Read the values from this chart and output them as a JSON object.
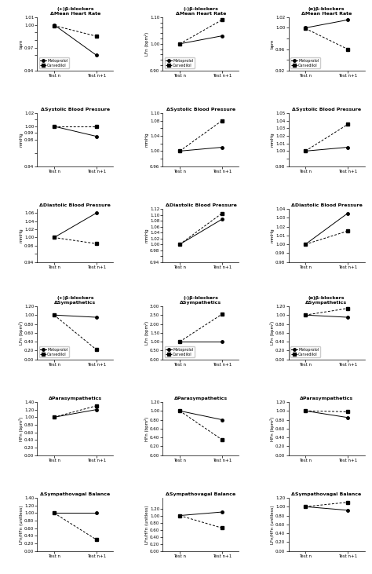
{
  "x_labels": [
    "Test n",
    "Test n+1"
  ],
  "legend_labels": [
    "Metoprolol",
    "Carvedilol"
  ],
  "plots": {
    "r1c1": {
      "title": "(+)β-blockers\nΔMean Heart Rate",
      "ylabel": "bpm",
      "ylim": [
        0.94,
        1.01
      ],
      "yticks": [
        0.94,
        0.96,
        0.97,
        0.98,
        0.99,
        1.0,
        1.01
      ],
      "ytick_labels": [
        "0.94",
        "",
        "0.97",
        "",
        "",
        "1.00",
        "1.01"
      ],
      "metoprolol": [
        1.0,
        0.96
      ],
      "carvedilol": [
        0.999,
        0.985
      ],
      "show_legend": true,
      "legend_loc": "lower left"
    },
    "r1c2": {
      "title": "(-)β-blockers\nΔMean Heart Rate",
      "ylabel": "LFn (bpm²)",
      "ylim": [
        0.9,
        1.1
      ],
      "yticks": [
        0.9,
        0.92,
        0.94,
        0.96,
        0.98,
        1.0,
        1.02,
        1.04,
        1.06,
        1.08,
        1.1
      ],
      "ytick_labels": [
        "0.90",
        "",
        "",
        "",
        "",
        "1.00",
        "",
        "",
        "",
        "",
        "1.10"
      ],
      "metoprolol": [
        1.0,
        1.03
      ],
      "carvedilol": [
        1.0,
        1.09
      ],
      "show_legend": true,
      "legend_loc": "lower left"
    },
    "r1c3": {
      "title": "(α)β-blockers\nΔMean Heart Rate",
      "ylabel": "bpm",
      "ylim": [
        0.92,
        1.02
      ],
      "yticks": [
        0.92,
        0.94,
        0.96,
        0.98,
        1.0,
        1.02
      ],
      "ytick_labels": [
        "0.92",
        "",
        "0.96",
        "",
        "1.00",
        "1.02"
      ],
      "metoprolol": [
        1.0,
        1.015
      ],
      "carvedilol": [
        0.999,
        0.96
      ],
      "show_legend": true,
      "legend_loc": "lower left"
    },
    "r2c1": {
      "title": "ΔSystolic Blood Pressure",
      "ylabel": "mmHg",
      "ylim": [
        0.94,
        1.02
      ],
      "yticks": [
        0.94,
        0.96,
        0.98,
        0.99,
        1.0,
        1.01,
        1.02
      ],
      "ytick_labels": [
        "0.94",
        "",
        "0.98",
        "0.99",
        "1.00",
        "",
        "1.02"
      ],
      "metoprolol": [
        1.0,
        0.985
      ],
      "carvedilol": [
        1.0,
        1.0
      ],
      "show_legend": false,
      "legend_loc": "lower left"
    },
    "r2c2": {
      "title": "ΔSystolic Blood Pressure",
      "ylabel": "mmHg",
      "ylim": [
        0.96,
        1.1
      ],
      "yticks": [
        0.96,
        0.98,
        1.0,
        1.02,
        1.04,
        1.06,
        1.08,
        1.1
      ],
      "ytick_labels": [
        "0.96",
        "",
        "1.00",
        "",
        "1.04",
        "",
        "1.08",
        "1.10"
      ],
      "metoprolol": [
        1.0,
        1.01
      ],
      "carvedilol": [
        1.0,
        1.08
      ],
      "show_legend": false,
      "legend_loc": "lower left"
    },
    "r2c3": {
      "title": "ΔSystolic Blood Pressure",
      "ylabel": "mmHg",
      "ylim": [
        0.98,
        1.05
      ],
      "yticks": [
        0.98,
        0.99,
        1.0,
        1.01,
        1.02,
        1.03,
        1.04,
        1.05
      ],
      "ytick_labels": [
        "0.98",
        "",
        "1.00",
        "1.01",
        "1.02",
        "1.03",
        "1.04",
        "1.05"
      ],
      "metoprolol": [
        1.0,
        1.005
      ],
      "carvedilol": [
        1.0,
        1.035
      ],
      "show_legend": false,
      "legend_loc": "lower left"
    },
    "r3c1": {
      "title": "ΔDiastolic Blood Pressure",
      "ylabel": "mmHg",
      "ylim": [
        0.94,
        1.07
      ],
      "yticks": [
        0.94,
        0.96,
        0.98,
        1.0,
        1.02,
        1.04,
        1.06
      ],
      "ytick_labels": [
        "0.94",
        "",
        "0.98",
        "1.00",
        "1.02",
        "1.04",
        "1.06"
      ],
      "metoprolol": [
        1.0,
        1.06
      ],
      "carvedilol": [
        1.0,
        0.985
      ],
      "show_legend": false,
      "legend_loc": "lower left"
    },
    "r3c2": {
      "title": "ΔDiastolic Blood Pressure",
      "ylabel": "mmHg",
      "ylim": [
        0.94,
        1.12
      ],
      "yticks": [
        0.94,
        0.96,
        0.98,
        1.0,
        1.02,
        1.04,
        1.06,
        1.08,
        1.1,
        1.12
      ],
      "ytick_labels": [
        "0.94",
        "",
        "0.98",
        "1.00",
        "1.02",
        "1.04",
        "1.06",
        "1.08",
        "1.10",
        "1.12"
      ],
      "metoprolol": [
        1.0,
        1.085
      ],
      "carvedilol": [
        1.0,
        1.105
      ],
      "show_legend": false,
      "legend_loc": "lower left"
    },
    "r3c3": {
      "title": "ΔDiastolic Blood Pressure",
      "ylabel": "mmHg",
      "ylim": [
        0.98,
        1.04
      ],
      "yticks": [
        0.98,
        0.99,
        1.0,
        1.01,
        1.02,
        1.03,
        1.04
      ],
      "ytick_labels": [
        "0.98",
        "0.99",
        "1.00",
        "1.01",
        "1.02",
        "1.03",
        "1.04"
      ],
      "metoprolol": [
        1.0,
        1.035
      ],
      "carvedilol": [
        1.0,
        1.015
      ],
      "show_legend": false,
      "legend_loc": "lower left"
    },
    "r4c1": {
      "title": "(+)β-blockers\nΔSympathetics",
      "ylabel": "LFn (bpm²)",
      "ylim": [
        0.0,
        1.2
      ],
      "yticks": [
        0.0,
        0.2,
        0.4,
        0.6,
        0.8,
        1.0,
        1.2
      ],
      "ytick_labels": [
        "0.00",
        "0.20",
        "0.40",
        "0.60",
        "0.80",
        "1.00",
        "1.20"
      ],
      "metoprolol": [
        1.0,
        0.95
      ],
      "carvedilol": [
        1.0,
        0.22
      ],
      "show_legend": true,
      "legend_loc": "lower left"
    },
    "r4c2": {
      "title": "(-)β-blockers\nΔSympathetics",
      "ylabel": "LFn (bpm²)",
      "ylim": [
        0.0,
        3.0
      ],
      "yticks": [
        0.0,
        0.5,
        1.0,
        1.5,
        2.0,
        2.5,
        3.0
      ],
      "ytick_labels": [
        "0.00",
        "0.50",
        "1.00",
        "1.50",
        "2.00",
        "2.50",
        "3.00"
      ],
      "metoprolol": [
        1.0,
        1.0
      ],
      "carvedilol": [
        1.0,
        2.55
      ],
      "show_legend": true,
      "legend_loc": "lower left"
    },
    "r4c3": {
      "title": "(α)β-blockers\nΔSympathetics",
      "ylabel": "LFn (bpm²)",
      "ylim": [
        0.0,
        1.2
      ],
      "yticks": [
        0.0,
        0.2,
        0.4,
        0.6,
        0.8,
        1.0,
        1.2
      ],
      "ytick_labels": [
        "0.00",
        "0.20",
        "0.40",
        "0.60",
        "0.80",
        "1.00",
        "1.20"
      ],
      "metoprolol": [
        1.0,
        0.95
      ],
      "carvedilol": [
        1.0,
        1.15
      ],
      "show_legend": true,
      "legend_loc": "lower left"
    },
    "r5c1": {
      "title": "ΔParasympathetics",
      "ylabel": "HFn (bpm²)",
      "ylim": [
        0.0,
        1.4
      ],
      "yticks": [
        0.0,
        0.2,
        0.4,
        0.6,
        0.8,
        1.0,
        1.2,
        1.4
      ],
      "ytick_labels": [
        "0.00",
        "0.20",
        "0.40",
        "0.60",
        "0.80",
        "1.00",
        "1.20",
        "1.40"
      ],
      "metoprolol": [
        1.0,
        1.2
      ],
      "carvedilol": [
        1.0,
        1.3
      ],
      "show_legend": false,
      "legend_loc": "lower left"
    },
    "r5c2": {
      "title": "ΔParasympathetics",
      "ylabel": "HFn (bpm²)",
      "ylim": [
        0.0,
        1.2
      ],
      "yticks": [
        0.0,
        0.2,
        0.4,
        0.6,
        0.8,
        1.0,
        1.2
      ],
      "ytick_labels": [
        "0.00",
        "0.20",
        "0.40",
        "0.60",
        "0.80",
        "1.00",
        "1.20"
      ],
      "metoprolol": [
        1.0,
        0.8
      ],
      "carvedilol": [
        1.0,
        0.35
      ],
      "show_legend": false,
      "legend_loc": "lower left"
    },
    "r5c3": {
      "title": "ΔParasympathetics",
      "ylabel": "HFn (bpm²)",
      "ylim": [
        0.0,
        1.2
      ],
      "yticks": [
        0.0,
        0.2,
        0.4,
        0.6,
        0.8,
        1.0,
        1.2
      ],
      "ytick_labels": [
        "0.00",
        "0.20",
        "0.40",
        "0.60",
        "0.80",
        "1.00",
        "1.20"
      ],
      "metoprolol": [
        1.0,
        0.85
      ],
      "carvedilol": [
        1.0,
        0.98
      ],
      "show_legend": false,
      "legend_loc": "lower left"
    },
    "r6c1": {
      "title": "ΔSympathovagal Balance",
      "ylabel": "LFn/HFn (unitless)",
      "ylim": [
        0.0,
        1.4
      ],
      "yticks": [
        0.0,
        0.2,
        0.4,
        0.6,
        0.8,
        1.0,
        1.2,
        1.4
      ],
      "ytick_labels": [
        "0.00",
        "0.20",
        "0.40",
        "0.60",
        "0.80",
        "1.00",
        "1.20",
        "1.40"
      ],
      "metoprolol": [
        1.0,
        1.0
      ],
      "carvedilol": [
        1.0,
        0.3
      ],
      "show_legend": false,
      "legend_loc": "lower left"
    },
    "r6c2": {
      "title": "ΔSympathovagal Balance",
      "ylabel": "LFn/HFn (unitless)",
      "ylim": [
        0.0,
        1.5
      ],
      "yticks": [
        0.0,
        0.2,
        0.4,
        0.6,
        0.8,
        1.0,
        1.2
      ],
      "ytick_labels": [
        "0.00",
        "0.20",
        "0.40",
        "0.60",
        "0.80",
        "1.00",
        "1.20"
      ],
      "metoprolol": [
        1.0,
        1.1
      ],
      "carvedilol": [
        1.0,
        0.65
      ],
      "show_legend": false,
      "legend_loc": "lower left"
    },
    "r6c3": {
      "title": "ΔSympathovagal Balance",
      "ylabel": "LFn/HFn (unitless)",
      "ylim": [
        0.0,
        1.2
      ],
      "yticks": [
        0.0,
        0.2,
        0.4,
        0.6,
        0.8,
        1.0,
        1.2
      ],
      "ytick_labels": [
        "0.00",
        "0.20",
        "0.40",
        "0.60",
        "0.80",
        "1.00",
        "1.20"
      ],
      "metoprolol": [
        1.0,
        0.92
      ],
      "carvedilol": [
        1.0,
        1.1
      ],
      "show_legend": false,
      "legend_loc": "lower left"
    }
  }
}
